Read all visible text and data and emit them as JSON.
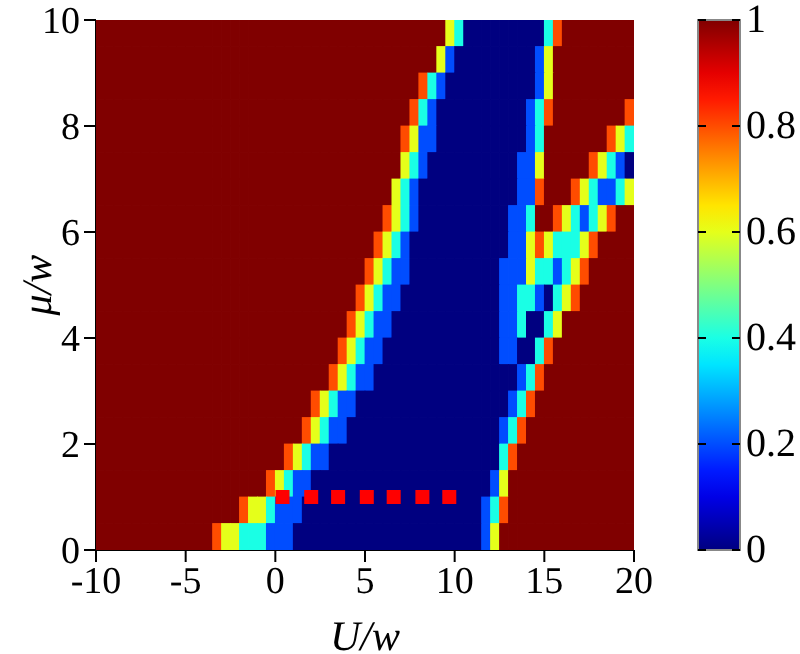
{
  "chart_data": {
    "type": "heatmap",
    "xlabel": "U/w",
    "ylabel": "μ/w",
    "xlim": [
      -10,
      20
    ],
    "xticks": [
      -10,
      -5,
      0,
      5,
      10,
      15,
      20
    ],
    "ylim": [
      0,
      10
    ],
    "yticks": [
      0,
      2,
      4,
      6,
      8,
      10
    ],
    "clim": [
      0,
      1
    ],
    "cticks": [
      0,
      0.2,
      0.4,
      0.6,
      0.8,
      1
    ],
    "x": [
      -9.75,
      -9.25,
      -8.75,
      -8.25,
      -7.75,
      -7.25,
      -6.75,
      -6.25,
      -5.75,
      -5.25,
      -4.75,
      -4.25,
      -3.75,
      -3.25,
      -2.75,
      -2.25,
      -1.75,
      -1.25,
      -0.75,
      -0.25,
      0.25,
      0.75,
      1.25,
      1.75,
      2.25,
      2.75,
      3.25,
      3.75,
      4.25,
      4.75,
      5.25,
      5.75,
      6.25,
      6.75,
      7.25,
      7.75,
      8.25,
      8.75,
      9.25,
      9.75,
      10.25,
      10.75,
      11.25,
      11.75,
      12.25,
      12.75,
      13.25,
      13.75,
      14.25,
      14.75,
      15.25,
      15.75,
      16.25,
      16.75,
      17.25,
      17.75,
      18.25,
      18.75,
      19.25,
      19.75
    ],
    "y": [
      9.75,
      9.25,
      8.75,
      8.25,
      7.75,
      7.25,
      6.75,
      6.25,
      5.75,
      5.25,
      4.75,
      4.25,
      3.75,
      3.25,
      2.75,
      2.25,
      1.75,
      1.25,
      0.75,
      0.25
    ],
    "cells": [
      [
        1,
        1,
        1,
        1,
        1,
        1,
        1,
        1,
        1,
        1,
        1,
        1,
        1,
        1,
        1,
        1,
        1,
        1,
        1,
        1,
        1,
        1,
        1,
        1,
        1,
        1,
        1,
        1,
        1,
        1,
        1,
        1,
        1,
        1,
        1,
        1,
        1,
        1,
        1,
        0.6,
        0.4,
        0,
        0,
        0,
        0,
        0,
        0,
        0,
        0,
        0,
        0.4,
        0.8,
        1,
        1,
        1,
        1,
        1,
        1,
        1,
        1
      ],
      [
        1,
        1,
        1,
        1,
        1,
        1,
        1,
        1,
        1,
        1,
        1,
        1,
        1,
        1,
        1,
        1,
        1,
        1,
        1,
        1,
        1,
        1,
        1,
        1,
        1,
        1,
        1,
        1,
        1,
        1,
        1,
        1,
        1,
        1,
        1,
        1,
        1,
        1,
        0.6,
        0.2,
        0,
        0,
        0,
        0,
        0,
        0,
        0,
        0,
        0,
        0.2,
        0.6,
        1,
        1,
        1,
        1,
        1,
        1,
        1,
        1,
        1
      ],
      [
        1,
        1,
        1,
        1,
        1,
        1,
        1,
        1,
        1,
        1,
        1,
        1,
        1,
        1,
        1,
        1,
        1,
        1,
        1,
        1,
        1,
        1,
        1,
        1,
        1,
        1,
        1,
        1,
        1,
        1,
        1,
        1,
        1,
        1,
        1,
        1,
        0.8,
        0.4,
        0.2,
        0,
        0,
        0,
        0,
        0,
        0,
        0,
        0,
        0,
        0,
        0.2,
        0.6,
        1,
        1,
        1,
        1,
        1,
        1,
        1,
        1,
        1
      ],
      [
        1,
        1,
        1,
        1,
        1,
        1,
        1,
        1,
        1,
        1,
        1,
        1,
        1,
        1,
        1,
        1,
        1,
        1,
        1,
        1,
        1,
        1,
        1,
        1,
        1,
        1,
        1,
        1,
        1,
        1,
        1,
        1,
        1,
        1,
        1,
        0.8,
        0.4,
        0.2,
        0,
        0,
        0,
        0,
        0,
        0,
        0,
        0,
        0,
        0,
        0.2,
        0.4,
        0.8,
        1,
        1,
        1,
        1,
        1,
        1,
        1,
        1,
        0.8
      ],
      [
        1,
        1,
        1,
        1,
        1,
        1,
        1,
        1,
        1,
        1,
        1,
        1,
        1,
        1,
        1,
        1,
        1,
        1,
        1,
        1,
        1,
        1,
        1,
        1,
        1,
        1,
        1,
        1,
        1,
        1,
        1,
        1,
        1,
        1,
        0.8,
        0.6,
        0.2,
        0.2,
        0,
        0,
        0,
        0,
        0,
        0,
        0,
        0,
        0,
        0,
        0.2,
        0.4,
        1,
        1,
        1,
        1,
        1,
        1,
        1,
        0.8,
        0.6,
        0.4
      ],
      [
        1,
        1,
        1,
        1,
        1,
        1,
        1,
        1,
        1,
        1,
        1,
        1,
        1,
        1,
        1,
        1,
        1,
        1,
        1,
        1,
        1,
        1,
        1,
        1,
        1,
        1,
        1,
        1,
        1,
        1,
        1,
        1,
        1,
        1,
        0.6,
        0.4,
        0.2,
        0,
        0,
        0,
        0,
        0,
        0,
        0,
        0,
        0,
        0,
        0.2,
        0.2,
        0.6,
        1,
        1,
        1,
        1,
        1,
        0.8,
        0.6,
        0.4,
        0.2,
        0
      ],
      [
        1,
        1,
        1,
        1,
        1,
        1,
        1,
        1,
        1,
        1,
        1,
        1,
        1,
        1,
        1,
        1,
        1,
        1,
        1,
        1,
        1,
        1,
        1,
        1,
        1,
        1,
        1,
        1,
        1,
        1,
        1,
        1,
        1,
        0.6,
        0.4,
        0.2,
        0,
        0,
        0,
        0,
        0,
        0,
        0,
        0,
        0,
        0,
        0,
        0.2,
        0.2,
        0.8,
        1,
        1,
        1,
        0.8,
        0.6,
        0.4,
        0.2,
        0.2,
        0.4,
        0.6
      ],
      [
        1,
        1,
        1,
        1,
        1,
        1,
        1,
        1,
        1,
        1,
        1,
        1,
        1,
        1,
        1,
        1,
        1,
        1,
        1,
        1,
        1,
        1,
        1,
        1,
        1,
        1,
        1,
        1,
        1,
        1,
        1,
        1,
        0.8,
        0.6,
        0.4,
        0.2,
        0,
        0,
        0,
        0,
        0,
        0,
        0,
        0,
        0,
        0,
        0.2,
        0.2,
        0.4,
        1,
        1,
        0.8,
        0.6,
        0.4,
        0.2,
        0.4,
        0.6,
        0.8,
        1,
        1
      ],
      [
        1,
        1,
        1,
        1,
        1,
        1,
        1,
        1,
        1,
        1,
        1,
        1,
        1,
        1,
        1,
        1,
        1,
        1,
        1,
        1,
        1,
        1,
        1,
        1,
        1,
        1,
        1,
        1,
        1,
        1,
        1,
        0.8,
        0.6,
        0.4,
        0.2,
        0,
        0,
        0,
        0,
        0,
        0,
        0,
        0,
        0,
        0,
        0,
        0.2,
        0.2,
        0.6,
        0.8,
        0.6,
        0.4,
        0.4,
        0.4,
        0.6,
        0.8,
        1,
        1,
        1,
        1
      ],
      [
        1,
        1,
        1,
        1,
        1,
        1,
        1,
        1,
        1,
        1,
        1,
        1,
        1,
        1,
        1,
        1,
        1,
        1,
        1,
        1,
        1,
        1,
        1,
        1,
        1,
        1,
        1,
        1,
        1,
        1,
        0.8,
        0.6,
        0.4,
        0.2,
        0.2,
        0,
        0,
        0,
        0,
        0,
        0,
        0,
        0,
        0,
        0,
        0.2,
        0.2,
        0.2,
        0.6,
        0.4,
        0.4,
        0.2,
        0.4,
        0.6,
        0.8,
        1,
        1,
        1,
        1,
        1
      ],
      [
        1,
        1,
        1,
        1,
        1,
        1,
        1,
        1,
        1,
        1,
        1,
        1,
        1,
        1,
        1,
        1,
        1,
        1,
        1,
        1,
        1,
        1,
        1,
        1,
        1,
        1,
        1,
        1,
        1,
        0.8,
        0.6,
        0.4,
        0.2,
        0.2,
        0,
        0,
        0,
        0,
        0,
        0,
        0,
        0,
        0,
        0,
        0,
        0.2,
        0.2,
        0.4,
        0.4,
        0.2,
        0,
        0.4,
        0.6,
        0.8,
        1,
        1,
        1,
        1,
        1,
        1
      ],
      [
        1,
        1,
        1,
        1,
        1,
        1,
        1,
        1,
        1,
        1,
        1,
        1,
        1,
        1,
        1,
        1,
        1,
        1,
        1,
        1,
        1,
        1,
        1,
        1,
        1,
        1,
        1,
        1,
        0.8,
        0.6,
        0.4,
        0.2,
        0.2,
        0,
        0,
        0,
        0,
        0,
        0,
        0,
        0,
        0,
        0,
        0,
        0,
        0.2,
        0.2,
        0.4,
        0,
        0,
        0.4,
        0.6,
        1,
        1,
        1,
        1,
        1,
        1,
        1,
        1
      ],
      [
        1,
        1,
        1,
        1,
        1,
        1,
        1,
        1,
        1,
        1,
        1,
        1,
        1,
        1,
        1,
        1,
        1,
        1,
        1,
        1,
        1,
        1,
        1,
        1,
        1,
        1,
        1,
        0.8,
        0.6,
        0.4,
        0.2,
        0.2,
        0,
        0,
        0,
        0,
        0,
        0,
        0,
        0,
        0,
        0,
        0,
        0,
        0,
        0.2,
        0.2,
        0,
        0,
        0.4,
        0.8,
        1,
        1,
        1,
        1,
        1,
        1,
        1,
        1,
        1
      ],
      [
        1,
        1,
        1,
        1,
        1,
        1,
        1,
        1,
        1,
        1,
        1,
        1,
        1,
        1,
        1,
        1,
        1,
        1,
        1,
        1,
        1,
        1,
        1,
        1,
        1,
        1,
        0.8,
        0.6,
        0.4,
        0.2,
        0.2,
        0,
        0,
        0,
        0,
        0,
        0,
        0,
        0,
        0,
        0,
        0,
        0,
        0,
        0,
        0,
        0,
        0.2,
        0.4,
        0.8,
        1,
        1,
        1,
        1,
        1,
        1,
        1,
        1,
        1,
        1
      ],
      [
        1,
        1,
        1,
        1,
        1,
        1,
        1,
        1,
        1,
        1,
        1,
        1,
        1,
        1,
        1,
        1,
        1,
        1,
        1,
        1,
        1,
        1,
        1,
        1,
        0.8,
        0.6,
        0.4,
        0.2,
        0.2,
        0,
        0,
        0,
        0,
        0,
        0,
        0,
        0,
        0,
        0,
        0,
        0,
        0,
        0,
        0,
        0,
        0,
        0.2,
        0.4,
        0.8,
        1,
        1,
        1,
        1,
        1,
        1,
        1,
        1,
        1,
        1,
        1
      ],
      [
        1,
        1,
        1,
        1,
        1,
        1,
        1,
        1,
        1,
        1,
        1,
        1,
        1,
        1,
        1,
        1,
        1,
        1,
        1,
        1,
        1,
        1,
        1,
        0.8,
        0.6,
        0.4,
        0.2,
        0.2,
        0,
        0,
        0,
        0,
        0,
        0,
        0,
        0,
        0,
        0,
        0,
        0,
        0,
        0,
        0,
        0,
        0,
        0.2,
        0.4,
        0.8,
        1,
        1,
        1,
        1,
        1,
        1,
        1,
        1,
        1,
        1,
        1,
        1
      ],
      [
        1,
        1,
        1,
        1,
        1,
        1,
        1,
        1,
        1,
        1,
        1,
        1,
        1,
        1,
        1,
        1,
        1,
        1,
        1,
        1,
        1,
        0.8,
        0.6,
        0.4,
        0.2,
        0.2,
        0,
        0,
        0,
        0,
        0,
        0,
        0,
        0,
        0,
        0,
        0,
        0,
        0,
        0,
        0,
        0,
        0,
        0,
        0,
        0.4,
        0.8,
        1,
        1,
        1,
        1,
        1,
        1,
        1,
        1,
        1,
        1,
        1,
        1,
        1
      ],
      [
        1,
        1,
        1,
        1,
        1,
        1,
        1,
        1,
        1,
        1,
        1,
        1,
        1,
        1,
        1,
        1,
        1,
        1,
        1,
        0.8,
        0.6,
        0.4,
        0.2,
        0.2,
        0,
        0,
        0,
        0,
        0,
        0,
        0,
        0,
        0,
        0,
        0,
        0,
        0,
        0,
        0,
        0,
        0,
        0,
        0,
        0,
        0.2,
        0.6,
        1,
        1,
        1,
        1,
        1,
        1,
        1,
        1,
        1,
        1,
        1,
        1,
        1,
        1
      ],
      [
        1,
        1,
        1,
        1,
        1,
        1,
        1,
        1,
        1,
        1,
        1,
        1,
        1,
        1,
        1,
        1,
        0.8,
        0.6,
        0.6,
        0.4,
        0.2,
        0.2,
        0.2,
        0,
        0,
        0,
        0,
        0,
        0,
        0,
        0,
        0,
        0,
        0,
        0,
        0,
        0,
        0,
        0,
        0,
        0,
        0,
        0,
        0.2,
        0.4,
        0.8,
        1,
        1,
        1,
        1,
        1,
        1,
        1,
        1,
        1,
        1,
        1,
        1,
        1,
        1
      ],
      [
        1,
        1,
        1,
        1,
        1,
        1,
        1,
        1,
        1,
        1,
        1,
        1,
        1,
        0.8,
        0.6,
        0.6,
        0.4,
        0.4,
        0.4,
        0.2,
        0.2,
        0.2,
        0,
        0,
        0,
        0,
        0,
        0,
        0,
        0,
        0,
        0,
        0,
        0,
        0,
        0,
        0,
        0,
        0,
        0,
        0,
        0,
        0,
        0.2,
        0.6,
        1,
        1,
        1,
        1,
        1,
        1,
        1,
        1,
        1,
        1,
        1,
        1,
        1,
        1,
        1
      ]
    ],
    "series": [
      {
        "type": "scatter",
        "color": "#ff0000",
        "marker": "square",
        "x": [
          0.4,
          2,
          3.5,
          5.1,
          6.6,
          8.2,
          9.7
        ],
        "values": [
          1,
          1,
          1,
          1,
          1,
          1,
          1
        ]
      }
    ]
  }
}
